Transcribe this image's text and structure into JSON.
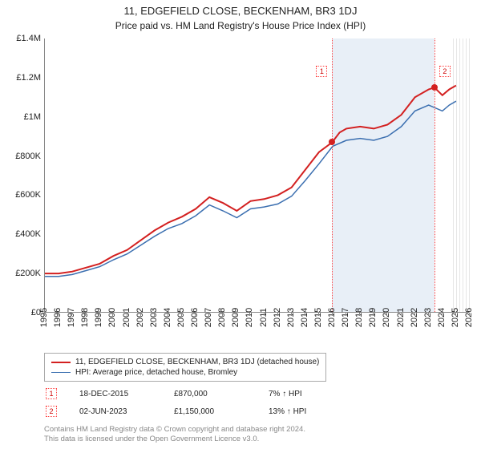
{
  "title": "11, EDGEFIELD CLOSE, BECKENHAM, BR3 1DJ",
  "subtitle": "Price paid vs. HM Land Registry's House Price Index (HPI)",
  "chart": {
    "type": "line",
    "background_color": "#ffffff",
    "shade_color": "#e8eff7",
    "hatch_future": true,
    "xlim": [
      1995,
      2026
    ],
    "ylim": [
      0,
      1400000
    ],
    "y_ticks": [
      0,
      200000,
      400000,
      600000,
      800000,
      1000000,
      1200000,
      1400000
    ],
    "y_tick_labels": [
      "£0",
      "£200K",
      "£400K",
      "£600K",
      "£800K",
      "£1M",
      "£1.2M",
      "£1.4M"
    ],
    "x_ticks": [
      1995,
      1996,
      1997,
      1998,
      1999,
      2000,
      2001,
      2002,
      2003,
      2004,
      2005,
      2006,
      2007,
      2008,
      2009,
      2010,
      2011,
      2012,
      2013,
      2014,
      2015,
      2016,
      2017,
      2018,
      2019,
      2020,
      2021,
      2022,
      2023,
      2024,
      2025,
      2026
    ],
    "series_a": {
      "label": "11, EDGEFIELD CLOSE, BECKENHAM, BR3 1DJ (detached house)",
      "color": "#d32020",
      "width": 2,
      "data": [
        [
          1995,
          200000
        ],
        [
          1996,
          200000
        ],
        [
          1997,
          210000
        ],
        [
          1998,
          230000
        ],
        [
          1999,
          250000
        ],
        [
          2000,
          290000
        ],
        [
          2001,
          320000
        ],
        [
          2002,
          370000
        ],
        [
          2003,
          420000
        ],
        [
          2004,
          460000
        ],
        [
          2005,
          490000
        ],
        [
          2006,
          530000
        ],
        [
          2007,
          590000
        ],
        [
          2008,
          560000
        ],
        [
          2009,
          520000
        ],
        [
          2010,
          570000
        ],
        [
          2011,
          580000
        ],
        [
          2012,
          600000
        ],
        [
          2013,
          640000
        ],
        [
          2014,
          730000
        ],
        [
          2015,
          820000
        ],
        [
          2015.96,
          870000
        ],
        [
          2016.5,
          920000
        ],
        [
          2017,
          940000
        ],
        [
          2018,
          950000
        ],
        [
          2019,
          940000
        ],
        [
          2020,
          960000
        ],
        [
          2021,
          1010000
        ],
        [
          2022,
          1100000
        ],
        [
          2023,
          1140000
        ],
        [
          2023.42,
          1150000
        ],
        [
          2024,
          1110000
        ],
        [
          2024.5,
          1140000
        ],
        [
          2025,
          1160000
        ]
      ]
    },
    "series_b": {
      "label": "HPI: Average price, detached house, Bromley",
      "color": "#3b6fb0",
      "width": 1.5,
      "data": [
        [
          1995,
          185000
        ],
        [
          1996,
          185000
        ],
        [
          1997,
          195000
        ],
        [
          1998,
          215000
        ],
        [
          1999,
          235000
        ],
        [
          2000,
          270000
        ],
        [
          2001,
          300000
        ],
        [
          2002,
          345000
        ],
        [
          2003,
          390000
        ],
        [
          2004,
          430000
        ],
        [
          2005,
          455000
        ],
        [
          2006,
          495000
        ],
        [
          2007,
          550000
        ],
        [
          2008,
          520000
        ],
        [
          2009,
          485000
        ],
        [
          2010,
          530000
        ],
        [
          2011,
          540000
        ],
        [
          2012,
          555000
        ],
        [
          2013,
          595000
        ],
        [
          2014,
          675000
        ],
        [
          2015,
          760000
        ],
        [
          2016,
          850000
        ],
        [
          2017,
          880000
        ],
        [
          2018,
          890000
        ],
        [
          2019,
          880000
        ],
        [
          2020,
          900000
        ],
        [
          2021,
          950000
        ],
        [
          2022,
          1030000
        ],
        [
          2023,
          1060000
        ],
        [
          2024,
          1030000
        ],
        [
          2024.5,
          1060000
        ],
        [
          2025,
          1080000
        ]
      ]
    },
    "markers": [
      {
        "n": "1",
        "x": 2015.96,
        "y": 870000,
        "date": "18-DEC-2015",
        "price": "£870,000",
        "delta": "7% ↑ HPI"
      },
      {
        "n": "2",
        "x": 2023.42,
        "y": 1150000,
        "date": "02-JUN-2023",
        "price": "£1,150,000",
        "delta": "13% ↑ HPI"
      }
    ],
    "now_x": 2024.8
  },
  "attribution": {
    "line1": "Contains HM Land Registry data © Crown copyright and database right 2024.",
    "line2": "This data is licensed under the Open Government Licence v3.0."
  }
}
